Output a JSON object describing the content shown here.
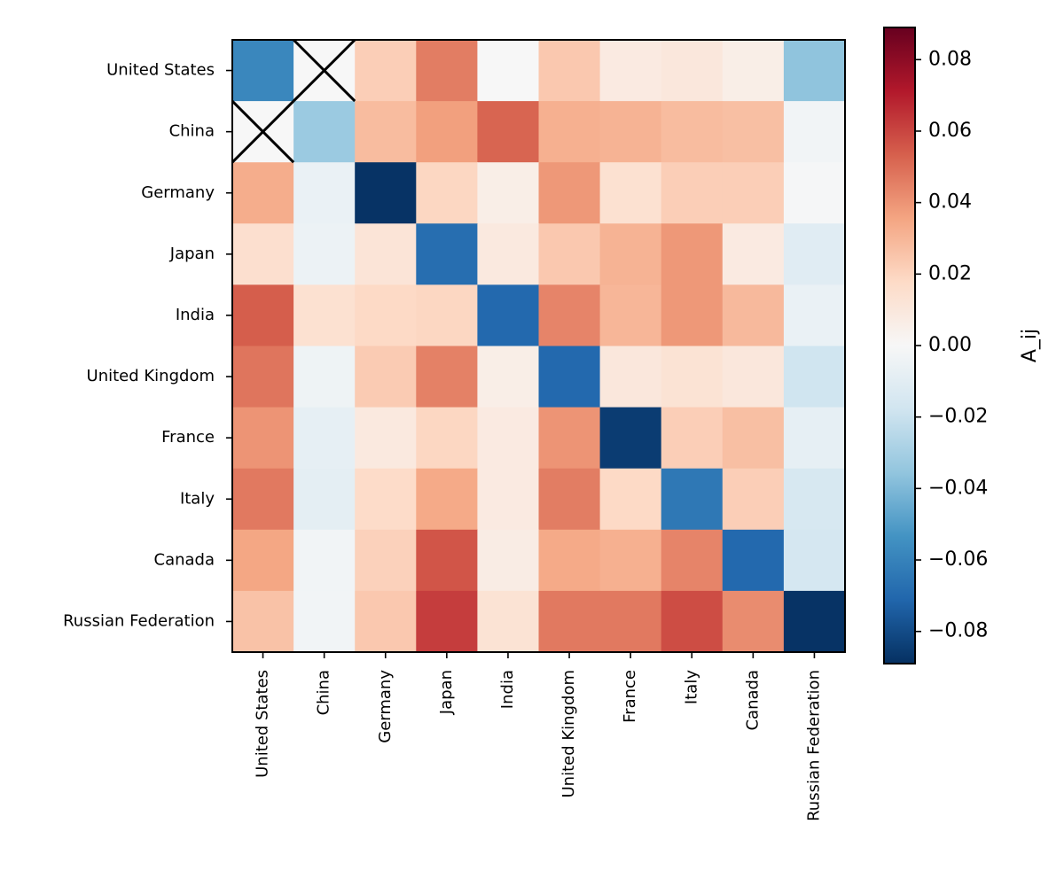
{
  "chart_data": {
    "type": "heatmap",
    "title": "",
    "xlabel": "",
    "ylabel": "",
    "rows": [
      "United States",
      "China",
      "Germany",
      "Japan",
      "India",
      "United Kingdom",
      "France",
      "Italy",
      "Canada",
      "Russian Federation"
    ],
    "columns": [
      "United States",
      "China",
      "Germany",
      "Japan",
      "India",
      "United Kingdom",
      "France",
      "Italy",
      "Canada",
      "Russian Federation"
    ],
    "values": [
      [
        -0.058,
        null,
        0.022,
        0.046,
        0.0,
        0.024,
        0.008,
        0.01,
        0.006,
        -0.036
      ],
      [
        null,
        -0.033,
        0.028,
        0.037,
        0.052,
        0.032,
        0.031,
        0.028,
        0.027,
        -0.003
      ],
      [
        0.033,
        -0.006,
        -0.088,
        0.019,
        0.006,
        0.039,
        0.014,
        0.022,
        0.022,
        -0.001
      ],
      [
        0.015,
        -0.005,
        0.012,
        -0.068,
        0.009,
        0.024,
        0.031,
        0.039,
        0.008,
        -0.011
      ],
      [
        0.054,
        0.014,
        0.018,
        0.019,
        -0.07,
        0.044,
        0.03,
        0.039,
        0.029,
        -0.006
      ],
      [
        0.048,
        -0.004,
        0.023,
        0.045,
        0.006,
        -0.07,
        0.01,
        0.013,
        0.01,
        -0.018
      ],
      [
        0.04,
        -0.008,
        0.009,
        0.019,
        0.008,
        0.04,
        -0.085,
        0.022,
        0.027,
        -0.008
      ],
      [
        0.047,
        -0.009,
        0.017,
        0.034,
        0.008,
        0.046,
        0.018,
        -0.064,
        0.022,
        -0.015
      ],
      [
        0.035,
        -0.003,
        0.021,
        0.056,
        0.007,
        0.034,
        0.032,
        0.044,
        -0.07,
        -0.016
      ],
      [
        0.026,
        -0.003,
        0.024,
        0.062,
        0.013,
        0.047,
        0.047,
        0.058,
        0.042,
        -0.088
      ]
    ],
    "masked_cells": [
      [
        0,
        1
      ],
      [
        1,
        0
      ]
    ],
    "colormap": "RdBu_r",
    "vmin": -0.089,
    "vmax": 0.089,
    "colorbar": {
      "label": "A_ij",
      "ticks": [
        -0.08,
        -0.06,
        -0.04,
        -0.02,
        0.0,
        0.02,
        0.04,
        0.06,
        0.08
      ],
      "tick_labels": [
        "−0.08",
        "−0.06",
        "−0.04",
        "−0.02",
        "0.00",
        "0.02",
        "0.04",
        "0.06",
        "0.08"
      ],
      "position": "right"
    },
    "grid": false
  }
}
